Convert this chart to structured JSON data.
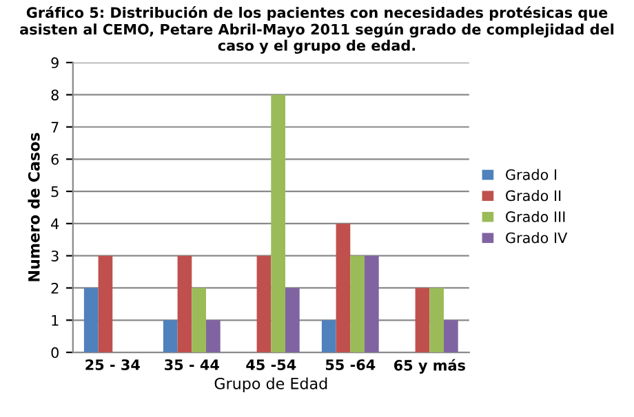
{
  "chart_data": {
    "type": "bar",
    "title": "Gráfico 5: Distribución de los pacientes con necesidades protésicas que asisten al CEMO, Petare Abril-Mayo 2011 según grado de complejidad del caso y el grupo de edad.",
    "xlabel": "Grupo de Edad",
    "ylabel": "Numero de Casos",
    "categories": [
      "25 - 34",
      "35 - 44",
      "45 -54",
      "55 -64",
      "65 y más"
    ],
    "series": [
      {
        "name": "Grado I",
        "color": "#4f81bd",
        "values": [
          2,
          1,
          null,
          1,
          null
        ]
      },
      {
        "name": "Grado II",
        "color": "#c0504d",
        "values": [
          3,
          3,
          3,
          4,
          2
        ]
      },
      {
        "name": "Grado III",
        "color": "#9bbb59",
        "values": [
          null,
          2,
          8,
          3,
          2
        ]
      },
      {
        "name": "Grado IV",
        "color": "#8064a2",
        "values": [
          null,
          1,
          2,
          3,
          1
        ]
      }
    ],
    "ylim": [
      0,
      9
    ],
    "yticks": [
      0,
      1,
      2,
      3,
      4,
      5,
      6,
      7,
      8,
      9
    ],
    "grid": "y",
    "legend": "right"
  }
}
